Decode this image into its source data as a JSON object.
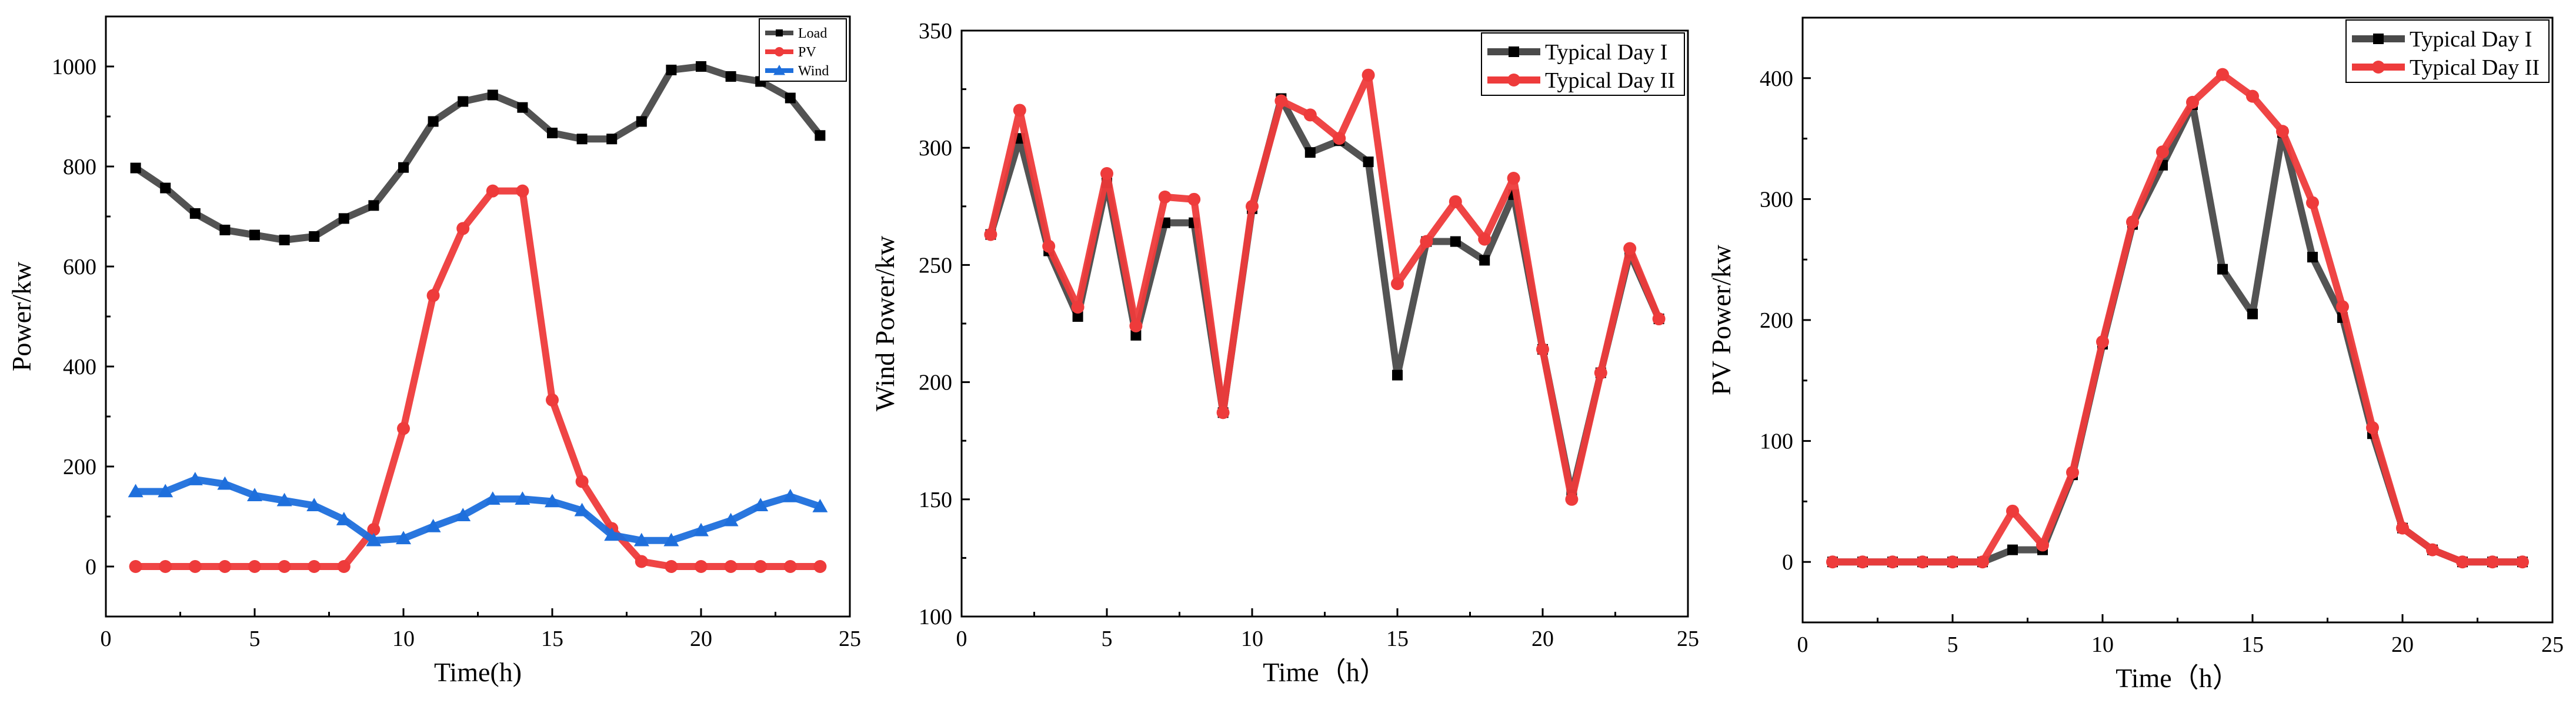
{
  "chart_data": [
    {
      "type": "line",
      "xlabel": "Time(h)",
      "ylabel": "Power/kw",
      "xlim": [
        0,
        25
      ],
      "ylim": [
        -100,
        1100
      ],
      "xticks": [
        0,
        5,
        10,
        15,
        20,
        25
      ],
      "yticks": [
        0,
        200,
        400,
        600,
        800,
        1000
      ],
      "legend": "top-right",
      "x": [
        1,
        2,
        3,
        4,
        5,
        6,
        7,
        8,
        9,
        10,
        11,
        12,
        13,
        14,
        15,
        16,
        17,
        18,
        19,
        20,
        21,
        22,
        23,
        24
      ],
      "series": [
        {
          "name": "Load",
          "color": "#4a4a4a",
          "marker": "square",
          "values": [
            797,
            757,
            706,
            673,
            663,
            653,
            660,
            696,
            722,
            798,
            890,
            930,
            943,
            918,
            867,
            855,
            855,
            890,
            993,
            1000,
            980,
            970,
            937,
            862
          ]
        },
        {
          "name": "PV",
          "color": "#ee3b3b",
          "marker": "circle",
          "values": [
            0,
            0,
            0,
            0,
            0,
            0,
            0,
            0,
            74,
            276,
            542,
            676,
            751,
            751,
            333,
            170,
            76,
            10,
            0,
            0,
            0,
            0,
            0,
            0
          ]
        },
        {
          "name": "Wind",
          "color": "#1e6fdc",
          "marker": "triangle",
          "values": [
            150,
            150,
            174,
            165,
            142,
            132,
            122,
            94,
            52,
            56,
            80,
            102,
            135,
            135,
            130,
            112,
            63,
            52,
            52,
            72,
            92,
            122,
            140,
            120
          ]
        }
      ]
    },
    {
      "type": "line",
      "xlabel": "Time（h）",
      "ylabel": "Wind Power/kw",
      "xlim": [
        0,
        25
      ],
      "ylim": [
        100,
        350
      ],
      "xticks": [
        0,
        5,
        10,
        15,
        20,
        25
      ],
      "yticks": [
        100,
        150,
        200,
        250,
        300,
        350
      ],
      "legend": "top-right",
      "x": [
        1,
        2,
        3,
        4,
        5,
        6,
        7,
        8,
        9,
        10,
        11,
        12,
        13,
        14,
        15,
        16,
        17,
        18,
        19,
        20,
        21,
        22,
        23,
        24
      ],
      "series": [
        {
          "name": "Typical Day I",
          "color": "#4a4a4a",
          "marker": "square",
          "values": [
            263,
            304,
            256,
            228,
            285,
            220,
            268,
            268,
            187,
            274,
            321,
            298,
            303,
            294,
            203,
            260,
            260,
            252,
            280,
            214,
            152,
            204,
            255,
            227
          ]
        },
        {
          "name": "Typical Day II",
          "color": "#ee3b3b",
          "marker": "circle",
          "values": [
            263,
            316,
            258,
            232,
            289,
            224,
            279,
            278,
            187,
            275,
            320,
            314,
            304,
            331,
            242,
            260,
            277,
            261,
            287,
            214,
            150,
            204,
            257,
            227
          ]
        }
      ]
    },
    {
      "type": "line",
      "xlabel": "Time（h）",
      "ylabel": "PV Power/kw",
      "xlim": [
        0,
        25
      ],
      "ylim": [
        -50,
        450
      ],
      "xticks": [
        0,
        5,
        10,
        15,
        20,
        25
      ],
      "yticks": [
        0,
        100,
        200,
        300,
        400
      ],
      "legend": "top-right",
      "x": [
        1,
        2,
        3,
        4,
        5,
        6,
        7,
        8,
        9,
        10,
        11,
        12,
        13,
        14,
        15,
        16,
        17,
        18,
        19,
        20,
        21,
        22,
        23,
        24
      ],
      "series": [
        {
          "name": "Typical Day I",
          "color": "#4a4a4a",
          "marker": "square",
          "values": [
            0,
            0,
            0,
            0,
            0,
            0,
            10,
            10,
            72,
            180,
            279,
            328,
            378,
            242,
            205,
            355,
            252,
            202,
            106,
            28,
            10,
            0,
            0,
            0
          ]
        },
        {
          "name": "Typical Day II",
          "color": "#ee3b3b",
          "marker": "circle",
          "values": [
            0,
            0,
            0,
            0,
            0,
            0,
            42,
            14,
            74,
            182,
            281,
            339,
            380,
            403,
            385,
            356,
            297,
            211,
            111,
            28,
            10,
            0,
            0,
            0
          ]
        }
      ]
    }
  ]
}
